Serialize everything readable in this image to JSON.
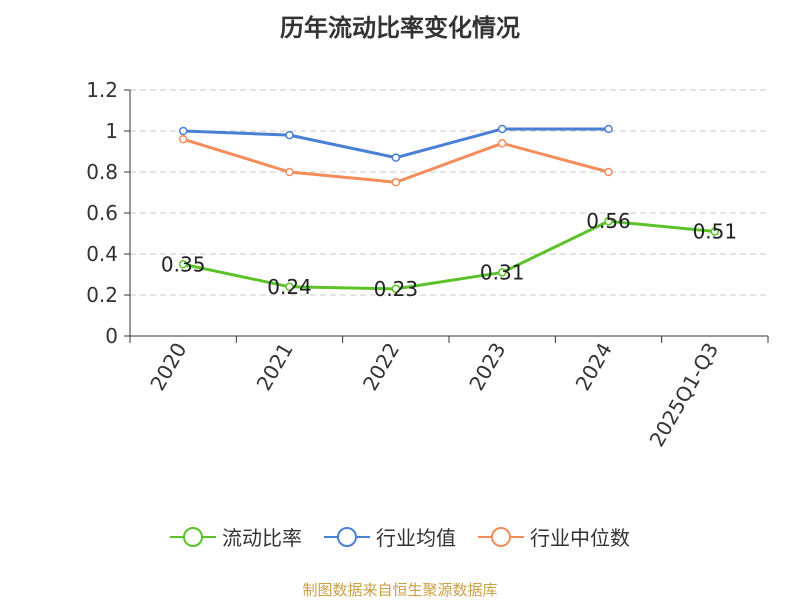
{
  "title": "历年流动比率变化情况",
  "source": "制图数据来自恒生聚源数据库",
  "chart_data": {
    "type": "line",
    "categories": [
      "2020",
      "2021",
      "2022",
      "2023",
      "2024",
      "2025Q1-Q3"
    ],
    "ylim": [
      0,
      1.2
    ],
    "yticks": [
      "0",
      "0.2",
      "0.4",
      "0.6",
      "0.8",
      "1",
      "1.2"
    ],
    "grid": true,
    "legend_position": "bottom",
    "series": [
      {
        "name": "流动比率",
        "color": "#5bc22a",
        "values": [
          0.35,
          0.24,
          0.23,
          0.31,
          0.56,
          0.51
        ],
        "labels": [
          "0.35",
          "0.24",
          "0.23",
          "0.31",
          "0.56",
          "0.51"
        ]
      },
      {
        "name": "行业均值",
        "color": "#4a7fd6",
        "values": [
          1.0,
          0.98,
          0.87,
          1.01,
          1.01,
          null
        ]
      },
      {
        "name": "行业中位数",
        "color": "#f58c5a",
        "values": [
          0.96,
          0.8,
          0.75,
          0.94,
          0.8,
          null
        ]
      }
    ]
  }
}
